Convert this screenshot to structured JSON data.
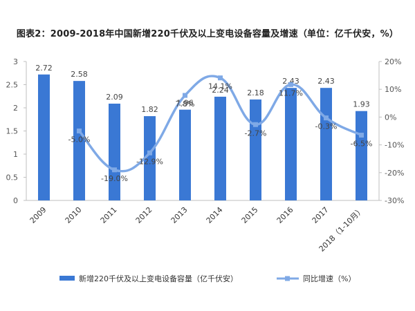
{
  "chart_data": {
    "type": "bar",
    "title": "图表2：2009-2018年中国新增220千伏及以上变电设备容量及增速（单位：亿千伏安，%）",
    "categories": [
      "2009",
      "2010",
      "2011",
      "2012",
      "2013",
      "2014",
      "2015",
      "2016",
      "2017",
      "2018（1-10月）"
    ],
    "series": [
      {
        "name": "新增220千伏及以上变电设备容量（亿千伏安）",
        "type": "bar",
        "axis": "left",
        "color": "#3a78d4",
        "values": [
          2.72,
          2.58,
          2.09,
          1.82,
          1.96,
          2.24,
          2.18,
          2.43,
          2.43,
          1.93
        ],
        "labels": [
          "2.72",
          "2.58",
          "2.09",
          "1.82",
          "1.96",
          "2.24",
          "2.18",
          "2.43",
          "2.43",
          "1.93"
        ]
      },
      {
        "name": "同比增速（%）",
        "type": "line",
        "axis": "right",
        "color": "#7fa9e6",
        "values": [
          null,
          -5.0,
          -19.0,
          -12.9,
          7.8,
          14.1,
          -2.7,
          11.7,
          -0.3,
          -6.5
        ],
        "labels": [
          "",
          "-5.0%",
          "-19.0%",
          "-12.9%",
          "7.8%",
          "14.1%",
          "-2.7%",
          "11.7%",
          "-0.3%",
          "-6.5%"
        ]
      }
    ],
    "left_axis": {
      "min": 0,
      "max": 3,
      "ticks": [
        "0",
        "0.5",
        "1",
        "1.5",
        "2",
        "2.5",
        "3"
      ]
    },
    "right_axis": {
      "min": -30,
      "max": 20,
      "ticks": [
        "-30%",
        "-20%",
        "-10%",
        "0%",
        "10%",
        "20%"
      ]
    },
    "grid": false,
    "legend_position": "bottom"
  }
}
